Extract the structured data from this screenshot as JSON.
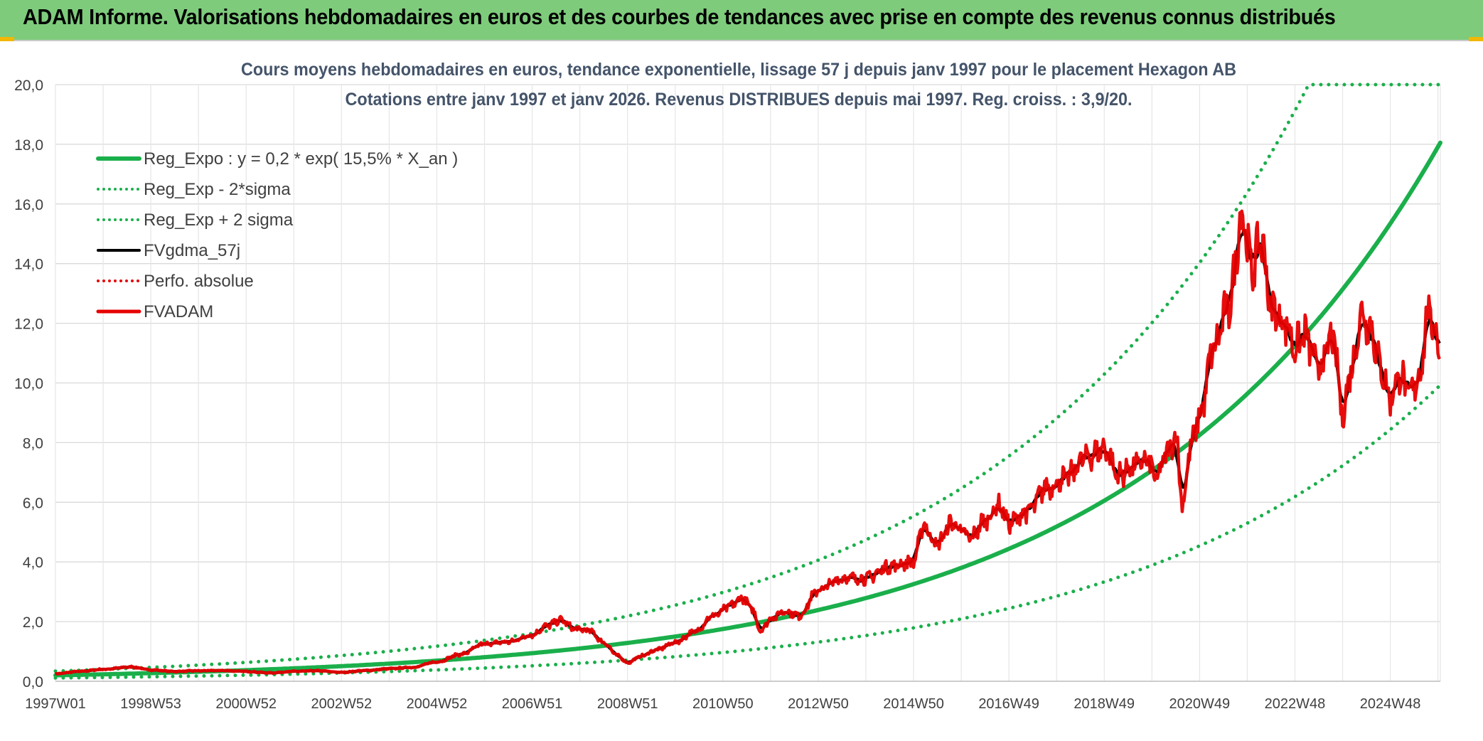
{
  "banner": {
    "title": "ADAM Informe. Valorisations hebdomadaires en euros et des courbes de tendances avec prise en compte des revenus connus distribués"
  },
  "colors": {
    "banner_bg": "#7ecb7c",
    "reg_green": "#1aaf4b",
    "fvgdma_black": "#000000",
    "fvadam_red": "#e60000",
    "grid": "#d9d9d9"
  },
  "chart_data": {
    "type": "line",
    "title_line1": "Cours moyens hebdomadaires en euros, tendance exponentielle, lissage 57 j depuis janv 1997 pour le placement Hexagon AB",
    "title_line2": "Cotations entre janv 1997 et janv 2026. Revenus DISTRIBUES depuis mai 1997. Reg. croiss. : 3,9/20.",
    "xlabel": "",
    "ylabel": "",
    "ylim": [
      0,
      20
    ],
    "y_ticks": [
      "0,0",
      "2,0",
      "4,0",
      "6,0",
      "8,0",
      "10,0",
      "12,0",
      "14,0",
      "16,0",
      "18,0",
      "20,0"
    ],
    "x_range_years": [
      1997.0,
      2026.05
    ],
    "x_tick_labels": [
      "1997W01",
      "1998W53",
      "2000W52",
      "2002W52",
      "2004W52",
      "2006W51",
      "2008W51",
      "2010W50",
      "2012W50",
      "2014W50",
      "2016W49",
      "2018W49",
      "2020W49",
      "2022W48",
      "2024W48"
    ],
    "x_tick_years": [
      1997.0,
      1999.0,
      2001.0,
      2003.0,
      2005.0,
      2007.0,
      2009.0,
      2011.0,
      2013.0,
      2015.0,
      2017.0,
      2019.0,
      2021.0,
      2023.0,
      2025.0
    ],
    "grid": true,
    "legend_position": "top-left",
    "regression": {
      "a": 0.2,
      "rate": 0.155,
      "sigma_factor": 1.7
    },
    "legend": [
      {
        "label": "Reg_Expo : y = 0,2 * exp( 15,5% *  X_an )",
        "color": "#1aaf4b",
        "style": "solid",
        "width": 6
      },
      {
        "label": "Reg_Exp - 2*sigma",
        "color": "#1aaf4b",
        "style": "dotted",
        "width": 4
      },
      {
        "label": "Reg_Exp + 2 sigma",
        "color": "#1aaf4b",
        "style": "dotted",
        "width": 4
      },
      {
        "label": "FVgdma_57j",
        "color": "#000000",
        "style": "solid",
        "width": 4
      },
      {
        "label": "Perfo. absolue",
        "color": "#e60000",
        "style": "dotted",
        "width": 3
      },
      {
        "label": "FVADAM",
        "color": "#e60000",
        "style": "solid",
        "width": 5
      }
    ],
    "series": [
      {
        "name": "Reg_Expo : y = 0,2 * exp( 15,5% *  X_an )",
        "kind": "regression",
        "factor": 1.0,
        "x_start": 1997.0,
        "x_end": 2026.05,
        "y_start": 0.2,
        "y_end": 19.4
      },
      {
        "name": "Reg_Exp - 2*sigma",
        "kind": "regression_band",
        "factor": 0.55,
        "x_start": 1997.0,
        "x_end": 2026.05,
        "y_start": 0.11,
        "y_end": 10.6
      },
      {
        "name": "Reg_Exp + 2 sigma",
        "kind": "regression_band",
        "factor": 1.7,
        "x_start": 1997.0,
        "x_end": 2026.05,
        "y_start": 0.34,
        "y_end": 20.0,
        "cap": 20.0
      },
      {
        "name": "FVADAM",
        "kind": "price",
        "points": [
          [
            1997.0,
            0.25
          ],
          [
            1997.5,
            0.33
          ],
          [
            1998.0,
            0.4
          ],
          [
            1998.6,
            0.48
          ],
          [
            1999.0,
            0.38
          ],
          [
            1999.5,
            0.33
          ],
          [
            2000.0,
            0.35
          ],
          [
            2000.5,
            0.36
          ],
          [
            2001.0,
            0.33
          ],
          [
            2001.5,
            0.28
          ],
          [
            2002.0,
            0.33
          ],
          [
            2002.5,
            0.35
          ],
          [
            2003.0,
            0.3
          ],
          [
            2003.5,
            0.36
          ],
          [
            2004.0,
            0.42
          ],
          [
            2004.5,
            0.47
          ],
          [
            2005.0,
            0.65
          ],
          [
            2005.5,
            0.9
          ],
          [
            2006.0,
            1.25
          ],
          [
            2006.5,
            1.32
          ],
          [
            2007.0,
            1.55
          ],
          [
            2007.3,
            1.85
          ],
          [
            2007.6,
            2.05
          ],
          [
            2007.9,
            1.75
          ],
          [
            2008.2,
            1.7
          ],
          [
            2008.5,
            1.3
          ],
          [
            2008.8,
            0.85
          ],
          [
            2009.0,
            0.62
          ],
          [
            2009.3,
            0.85
          ],
          [
            2009.6,
            1.05
          ],
          [
            2010.0,
            1.3
          ],
          [
            2010.4,
            1.65
          ],
          [
            2010.8,
            2.2
          ],
          [
            2011.2,
            2.55
          ],
          [
            2011.4,
            2.8
          ],
          [
            2011.6,
            2.45
          ],
          [
            2011.8,
            1.7
          ],
          [
            2012.0,
            2.1
          ],
          [
            2012.3,
            2.35
          ],
          [
            2012.6,
            2.2
          ],
          [
            2013.0,
            3.05
          ],
          [
            2013.5,
            3.45
          ],
          [
            2014.0,
            3.45
          ],
          [
            2014.5,
            3.85
          ],
          [
            2015.0,
            4.0
          ],
          [
            2015.2,
            5.2
          ],
          [
            2015.5,
            4.6
          ],
          [
            2015.8,
            5.3
          ],
          [
            2016.2,
            4.8
          ],
          [
            2016.5,
            5.4
          ],
          [
            2016.8,
            5.9
          ],
          [
            2017.0,
            5.3
          ],
          [
            2017.4,
            5.7
          ],
          [
            2017.8,
            6.5
          ],
          [
            2018.2,
            6.8
          ],
          [
            2018.6,
            7.5
          ],
          [
            2019.0,
            7.8
          ],
          [
            2019.3,
            6.9
          ],
          [
            2019.6,
            7.2
          ],
          [
            2019.9,
            7.4
          ],
          [
            2020.1,
            6.8
          ],
          [
            2020.3,
            7.6
          ],
          [
            2020.5,
            8.2
          ],
          [
            2020.65,
            5.9
          ],
          [
            2020.8,
            7.8
          ],
          [
            2021.0,
            8.9
          ],
          [
            2021.3,
            11.2
          ],
          [
            2021.6,
            12.5
          ],
          [
            2021.9,
            15.6
          ],
          [
            2022.1,
            13.8
          ],
          [
            2022.3,
            14.8
          ],
          [
            2022.5,
            12.5
          ],
          [
            2022.8,
            12.0
          ],
          [
            2023.0,
            11.2
          ],
          [
            2023.2,
            11.6
          ],
          [
            2023.5,
            10.5
          ],
          [
            2023.8,
            11.5
          ],
          [
            2024.0,
            9.0
          ],
          [
            2024.2,
            10.6
          ],
          [
            2024.4,
            12.3
          ],
          [
            2024.6,
            11.8
          ],
          [
            2024.8,
            10.5
          ],
          [
            2025.0,
            9.5
          ],
          [
            2025.2,
            10.3
          ],
          [
            2025.4,
            9.6
          ],
          [
            2025.6,
            10.2
          ],
          [
            2025.8,
            12.3
          ],
          [
            2026.05,
            11.3
          ]
        ]
      },
      {
        "name": "FVgdma_57j",
        "kind": "smoothed_of_price",
        "window": 5
      }
    ]
  }
}
